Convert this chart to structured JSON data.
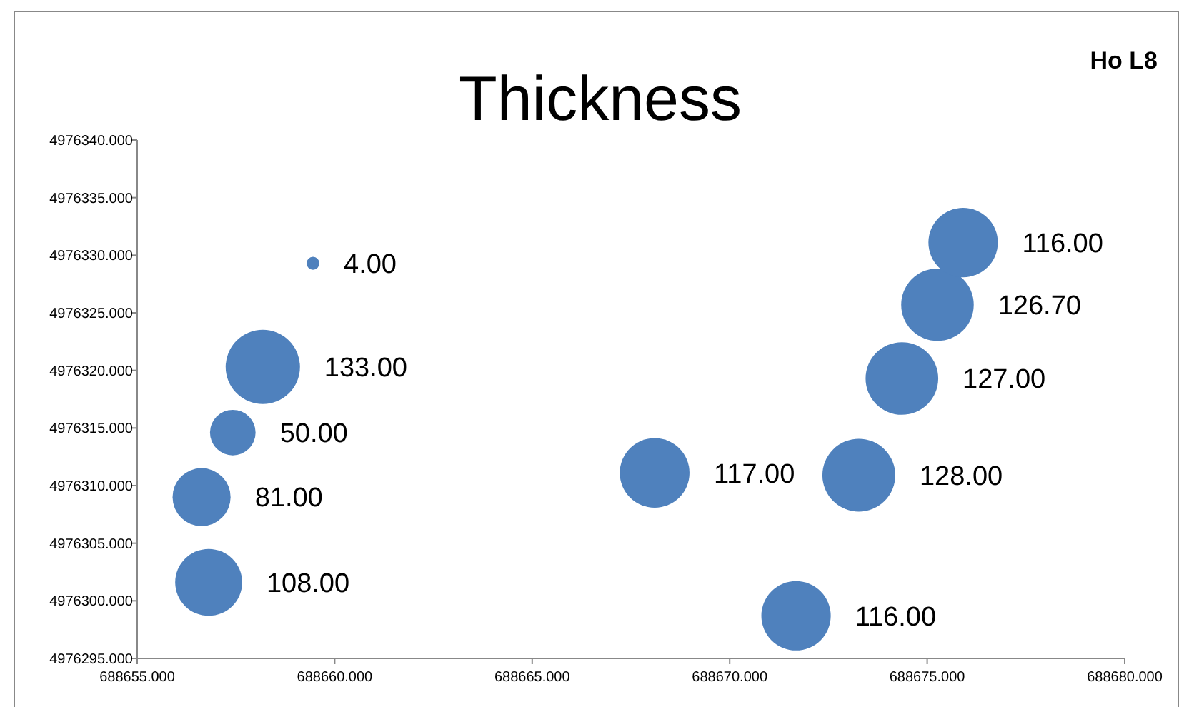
{
  "chart_data": {
    "type": "bubble",
    "title": "Thickness",
    "annotations": [
      "Ho L8"
    ],
    "x": [
      688659.45,
      688658.18,
      688657.42,
      688656.63,
      688656.81,
      688668.1,
      688671.68,
      688673.27,
      688674.36,
      688675.26,
      688675.91
    ],
    "values": [
      4976329.3,
      4976320.3,
      4976314.6,
      4976309.0,
      4976301.6,
      4976311.1,
      4976298.7,
      4976310.9,
      4976319.3,
      4976325.7,
      4976331.1
    ],
    "sizes": [
      4,
      133,
      50,
      81,
      108,
      117,
      116,
      128,
      127,
      126.7,
      116
    ],
    "value_labels": [
      "4.00",
      "133.00",
      "50.00",
      "81.00",
      "108.00",
      "117.00",
      "116.00",
      "128.00",
      "127.00",
      "126.70",
      "116.00"
    ],
    "color": "#4f81bd",
    "xlim": [
      688655,
      688680
    ],
    "xticks": [
      {
        "value": 688655,
        "label": "688655.000"
      },
      {
        "value": 688660,
        "label": "688660.000"
      },
      {
        "value": 688665,
        "label": "688665.000"
      },
      {
        "value": 688670,
        "label": "688670.000"
      },
      {
        "value": 688675,
        "label": "688675.000"
      },
      {
        "value": 688680,
        "label": "688680.000"
      }
    ],
    "ylim": [
      4976295,
      4976340
    ],
    "yticks": [
      {
        "value": 4976295,
        "label": "4976295.000"
      },
      {
        "value": 4976300,
        "label": "4976300.000"
      },
      {
        "value": 4976305,
        "label": "4976305.000"
      },
      {
        "value": 4976310,
        "label": "4976310.000"
      },
      {
        "value": 4976315,
        "label": "4976315.000"
      },
      {
        "value": 4976320,
        "label": "4976320.000"
      },
      {
        "value": 4976325,
        "label": "4976325.000"
      },
      {
        "value": 4976330,
        "label": "4976330.000"
      },
      {
        "value": 4976335,
        "label": "4976335.000"
      },
      {
        "value": 4976340,
        "label": "4976340.000"
      }
    ],
    "grid": false
  }
}
